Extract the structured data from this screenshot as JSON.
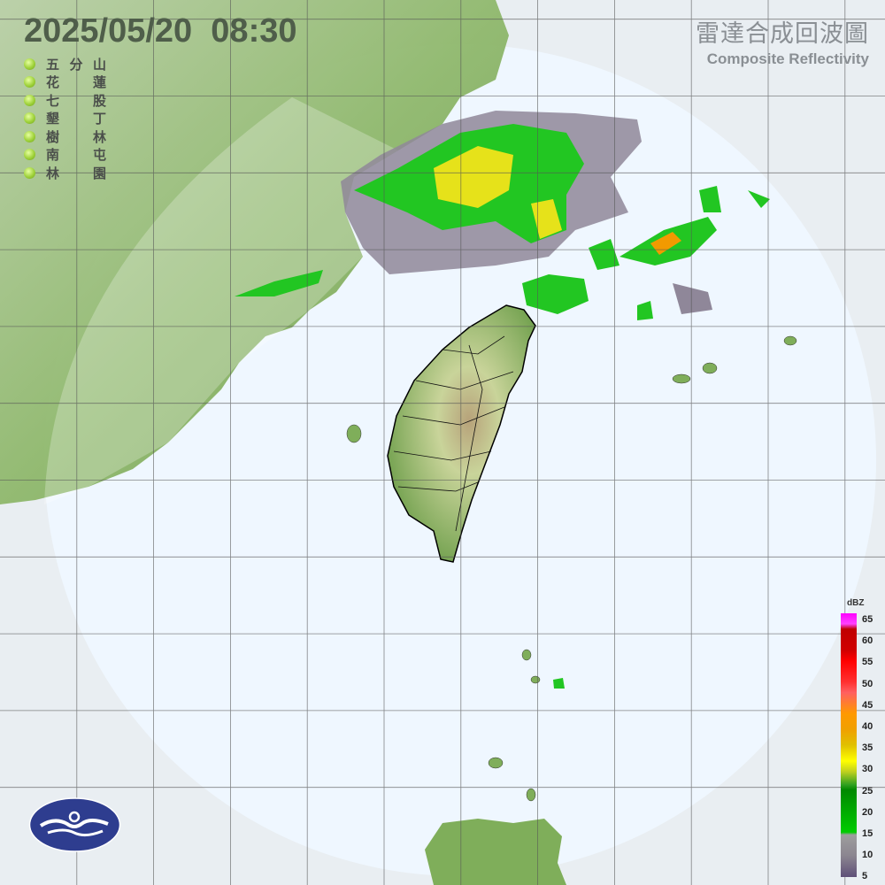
{
  "header": {
    "timestamp": "2025/05/20  08:30"
  },
  "stations": [
    {
      "a": "五",
      "b": "分",
      "c": "山"
    },
    {
      "a": "花",
      "b": "",
      "c": "蓮"
    },
    {
      "a": "七",
      "b": "",
      "c": "股"
    },
    {
      "a": "墾",
      "b": "",
      "c": "丁"
    },
    {
      "a": "樹",
      "b": "",
      "c": "林"
    },
    {
      "a": "南",
      "b": "",
      "c": "屯"
    },
    {
      "a": "林",
      "b": "",
      "c": "園"
    }
  ],
  "title": {
    "zh": "雷達合成回波圖",
    "en": "Composite Reflectivity"
  },
  "colorbar": {
    "unit": "dBZ",
    "ticks": [
      "65",
      "60",
      "55",
      "50",
      "45",
      "40",
      "35",
      "30",
      "25",
      "20",
      "15",
      "10",
      "5"
    ],
    "colors": {
      "5": "#5e4f78",
      "15": "#8b8590",
      "20": "#9e9e9e",
      "25": "#00cc00",
      "30": "#008800",
      "35": "#ffff00",
      "40": "#e0b000",
      "45": "#ff9900",
      "50": "#ff5050",
      "55": "#ff0000",
      "60": "#c00000",
      "65": "#ff00ff"
    }
  },
  "colors": {
    "sea": "#eef6fd",
    "coverage": "#f2f8ff",
    "land": "#7aa556",
    "grid": "#555555",
    "logo": "#2e3d8f"
  }
}
